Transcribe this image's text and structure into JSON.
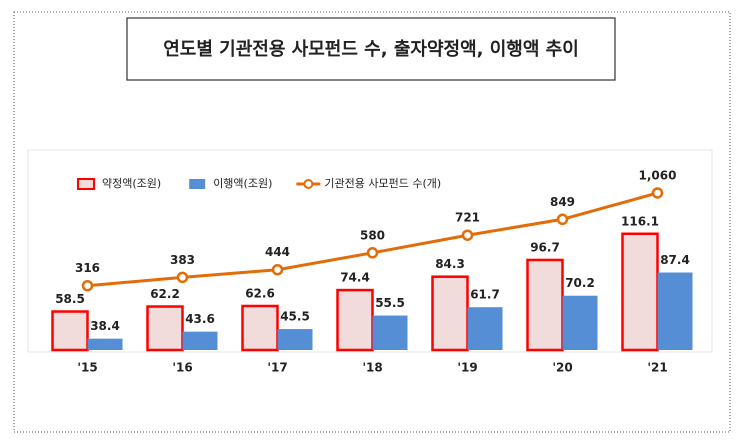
{
  "chart_data": {
    "type": "bar",
    "title": "연도별 기관전용 사모펀드 수, 출자약정액, 이행액 추이",
    "categories": [
      "'15",
      "'16",
      "'17",
      "'18",
      "'19",
      "'20",
      "'21"
    ],
    "series": [
      {
        "name": "약정액(조원)",
        "type": "bar",
        "color": "#f2dcdb",
        "edge_color": "#ff0000",
        "values": [
          58.5,
          62.2,
          62.6,
          74.4,
          84.3,
          96.7,
          116.1
        ]
      },
      {
        "name": "이행액(조원)",
        "type": "bar",
        "color": "#558ed5",
        "values": [
          38.4,
          43.6,
          45.5,
          55.5,
          61.7,
          70.2,
          87.4
        ]
      },
      {
        "name": "기관전용 사모펀드 수(개)",
        "type": "line",
        "axis": "y2",
        "color": "#e36c09",
        "values": [
          316,
          383,
          444,
          580,
          721,
          849,
          1060
        ],
        "value_labels": [
          "316",
          "383",
          "444",
          "580",
          "721",
          "849",
          "1,060"
        ]
      }
    ],
    "ylim": [
      30,
      150
    ],
    "y2lim": [
      -200,
      1100
    ],
    "legend": "top-left"
  }
}
